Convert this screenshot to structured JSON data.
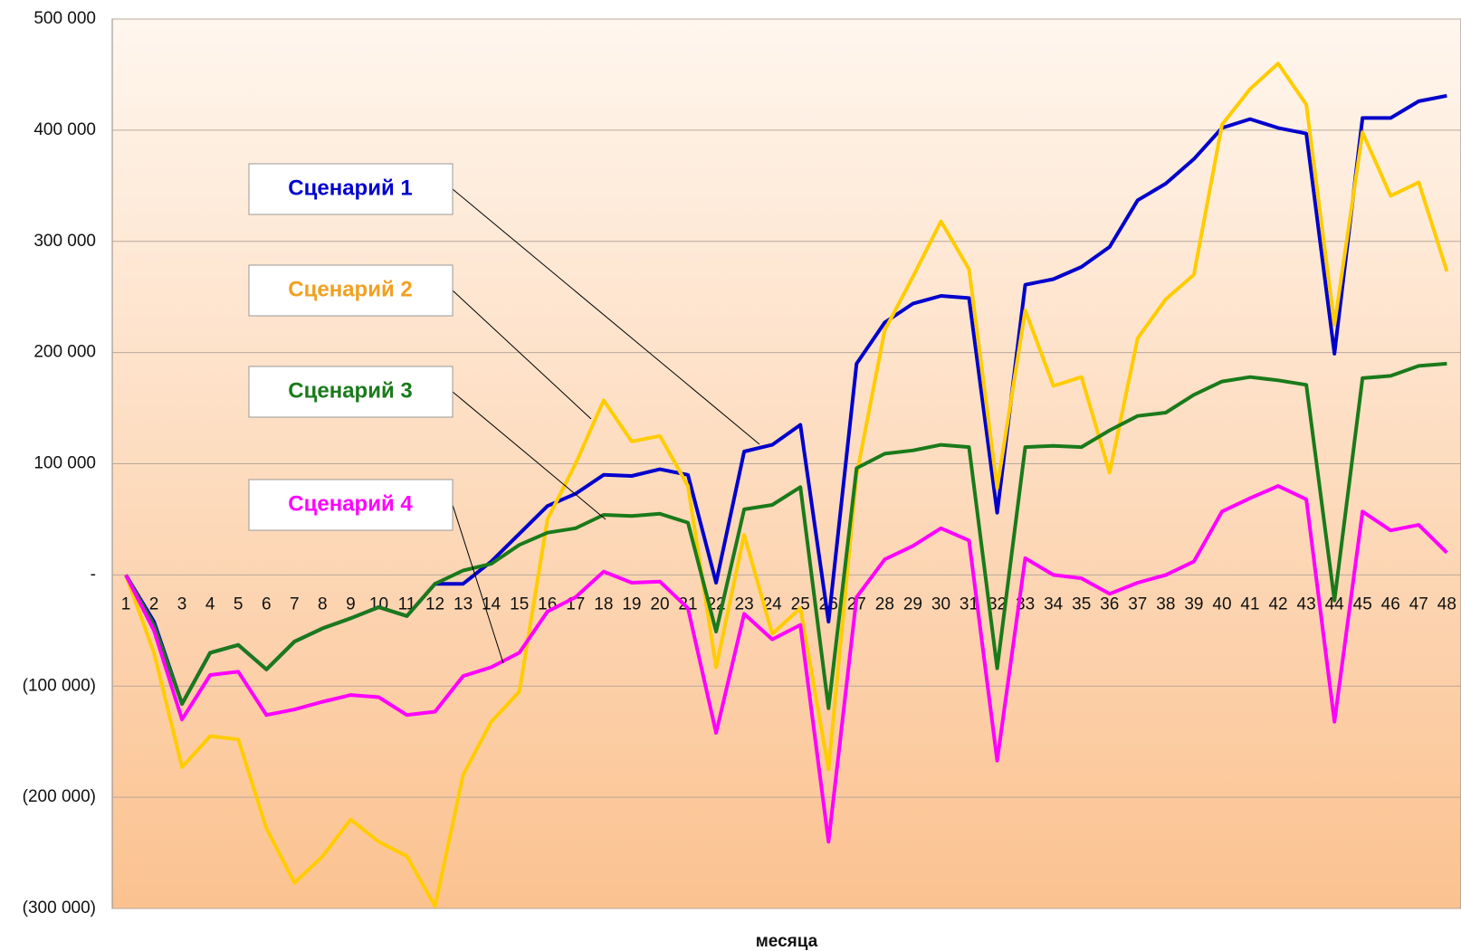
{
  "chart_data": {
    "type": "line",
    "x_label": "месяца",
    "categories": [
      "1",
      "2",
      "3",
      "4",
      "5",
      "6",
      "7",
      "8",
      "9",
      "10",
      "11",
      "12",
      "13",
      "14",
      "15",
      "16",
      "17",
      "18",
      "19",
      "20",
      "21",
      "22",
      "23",
      "24",
      "25",
      "26",
      "27",
      "28",
      "29",
      "30",
      "31",
      "32",
      "33",
      "34",
      "35",
      "36",
      "37",
      "38",
      "39",
      "40",
      "41",
      "42",
      "43",
      "44",
      "45",
      "46",
      "47",
      "48"
    ],
    "ylim": [
      -300000,
      500000
    ],
    "yticks": [
      {
        "value": -300000,
        "label": "(300 000)"
      },
      {
        "value": -200000,
        "label": "(200 000)"
      },
      {
        "value": -100000,
        "label": "(100 000)"
      },
      {
        "value": 0,
        "label": "-"
      },
      {
        "value": 100000,
        "label": "100 000"
      },
      {
        "value": 200000,
        "label": "200 000"
      },
      {
        "value": 300000,
        "label": "300 000"
      },
      {
        "value": 400000,
        "label": "400 000"
      },
      {
        "value": 500000,
        "label": "500 000"
      }
    ],
    "grid": true,
    "series": [
      {
        "name": "Сценарий 1",
        "color": "#0000cc",
        "values": [
          0,
          -42000,
          -116000,
          -70000,
          -63000,
          -85000,
          -60000,
          -48000,
          -39000,
          -29000,
          -37000,
          -8000,
          -8000,
          12000,
          37000,
          62000,
          73000,
          90000,
          89000,
          95000,
          90000,
          -7000,
          111000,
          117000,
          135000,
          -42000,
          190000,
          227000,
          244000,
          251000,
          249000,
          56000,
          261000,
          266000,
          277000,
          295000,
          337000,
          352000,
          374000,
          402000,
          410000,
          402000,
          397000,
          199000,
          411000,
          411000,
          426000,
          431000
        ]
      },
      {
        "name": "Сценарий 2",
        "color": "#ffcc00",
        "values": [
          0,
          -70000,
          -173000,
          -145000,
          -148000,
          -228000,
          -277000,
          -253000,
          -220000,
          -240000,
          -253000,
          -298000,
          -180000,
          -132000,
          -105000,
          50000,
          100000,
          157000,
          120000,
          125000,
          80000,
          -83000,
          36000,
          -53000,
          -30000,
          -175000,
          90000,
          220000,
          268000,
          318000,
          275000,
          78000,
          238000,
          170000,
          178000,
          92000,
          213000,
          248000,
          270000,
          405000,
          437000,
          460000,
          423000,
          225000,
          398000,
          341000,
          353000,
          273000
        ]
      },
      {
        "name": "Сценарий 3",
        "color": "#1a7a1a",
        "values": [
          0,
          -45000,
          -116000,
          -70000,
          -63000,
          -85000,
          -60000,
          -48000,
          -39000,
          -29000,
          -37000,
          -8000,
          4000,
          10000,
          27000,
          38000,
          42000,
          54000,
          53000,
          55000,
          47000,
          -51000,
          59000,
          63000,
          79000,
          -120000,
          96000,
          109000,
          112000,
          117000,
          115000,
          -84000,
          115000,
          116000,
          115000,
          130000,
          143000,
          146000,
          162000,
          174000,
          178000,
          175000,
          171000,
          -23000,
          177000,
          179000,
          188000,
          190000
        ]
      },
      {
        "name": "Сценарий 4",
        "color": "#ff00ff",
        "values": [
          0,
          -50000,
          -130000,
          -90000,
          -87000,
          -126000,
          -121000,
          -114000,
          -108000,
          -110000,
          -126000,
          -123000,
          -91000,
          -83000,
          -70000,
          -33000,
          -20000,
          3000,
          -7000,
          -6000,
          -30000,
          -142000,
          -35000,
          -58000,
          -45000,
          -240000,
          -20000,
          14000,
          26000,
          42000,
          31000,
          -167000,
          15000,
          0,
          -3000,
          -17000,
          -7000,
          0,
          12000,
          57000,
          69000,
          80000,
          68000,
          -132000,
          57000,
          40000,
          45000,
          20000
        ]
      }
    ]
  }
}
